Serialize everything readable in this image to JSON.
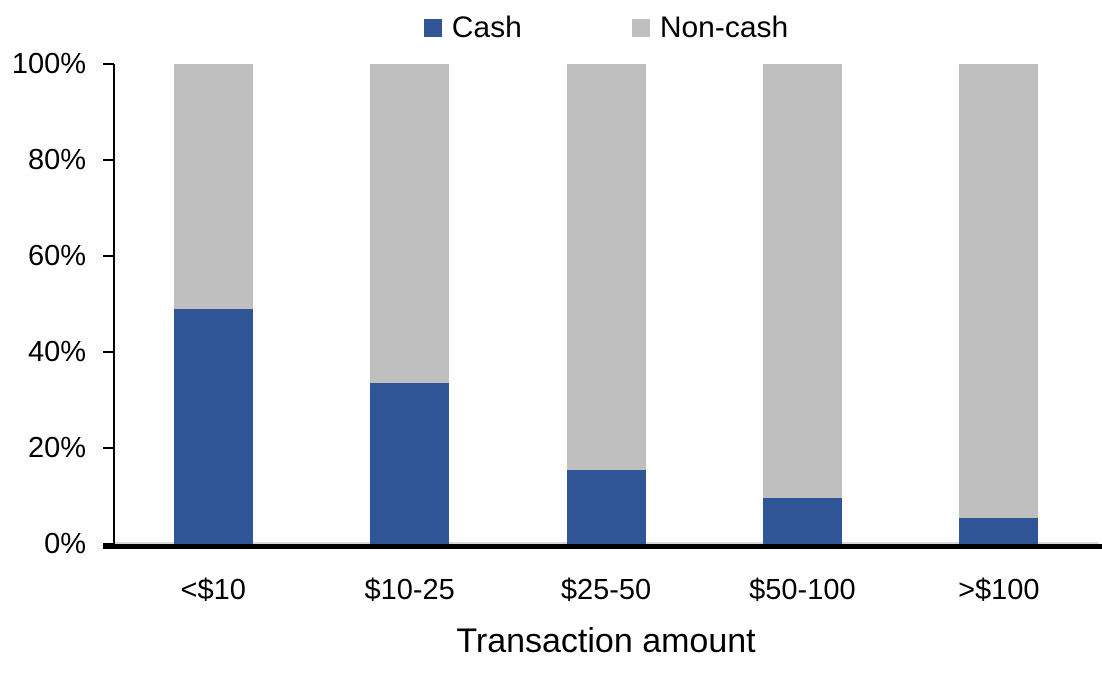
{
  "chart_data": {
    "type": "bar",
    "stacked": true,
    "percent_stacked": true,
    "title": "",
    "xlabel": "Transaction amount",
    "ylabel": "",
    "categories": [
      "<$10",
      "$10-25",
      "$25-50",
      "$50-100",
      ">$100"
    ],
    "series": [
      {
        "name": "Cash",
        "color": "#2F5597",
        "values": [
          49,
          33.5,
          15.5,
          9.5,
          5.5
        ]
      },
      {
        "name": "Non-cash",
        "color": "#BFBFBF",
        "values": [
          51,
          66.5,
          84.5,
          90.5,
          94.5
        ]
      }
    ],
    "ylim": [
      0,
      100
    ],
    "yticks": [
      0,
      20,
      40,
      60,
      80,
      100
    ],
    "ytick_labels": [
      "0%",
      "20%",
      "40%",
      "60%",
      "80%",
      "100%"
    ],
    "legend_position": "top-center",
    "grid": false,
    "axis_color": "#000000",
    "background_color": "#FFFFFF"
  }
}
